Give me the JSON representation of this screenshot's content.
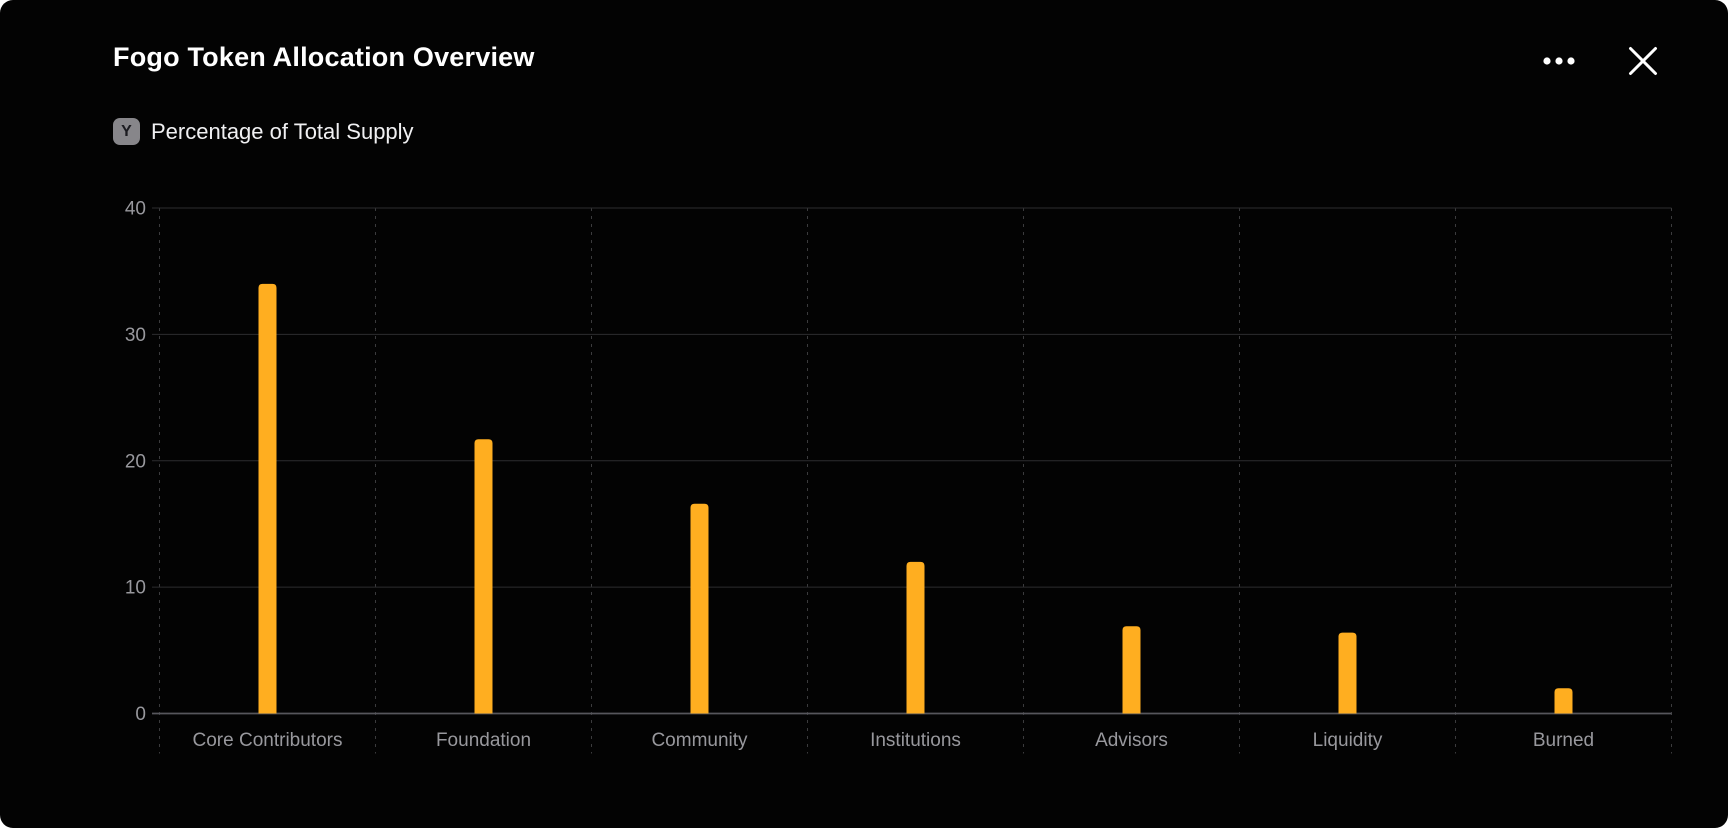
{
  "window": {
    "title": "Fogo Token Allocation Overview"
  },
  "header": {
    "more_icon": "ellipsis-horizontal",
    "close_icon": "x-mark"
  },
  "legend": {
    "badge": "Y",
    "label": "Percentage of Total Supply"
  },
  "chart_data": {
    "type": "bar",
    "title": "Fogo Token Allocation Overview",
    "xlabel": "",
    "ylabel": "Percentage of Total Supply",
    "categories": [
      "Core Contributors",
      "Foundation",
      "Community",
      "Institutions",
      "Advisors",
      "Liquidity",
      "Burned"
    ],
    "values": [
      34,
      21.7,
      16.6,
      12,
      6.9,
      6.4,
      2
    ],
    "ylim": [
      0,
      40
    ],
    "yticks": [
      0,
      10,
      20,
      30,
      40
    ],
    "grid": true,
    "legend_position": "none",
    "bar_color": "#ffae20"
  },
  "colors": {
    "card_bg": "#030303",
    "title_text": "#ffffff",
    "axis_text": "#98989d",
    "gridline": "#2d2d2f",
    "baseline": "#56565c",
    "dashed_gridline": "#3b3b3d",
    "bar": "#ffae20",
    "badge_bg": "#87868a"
  }
}
